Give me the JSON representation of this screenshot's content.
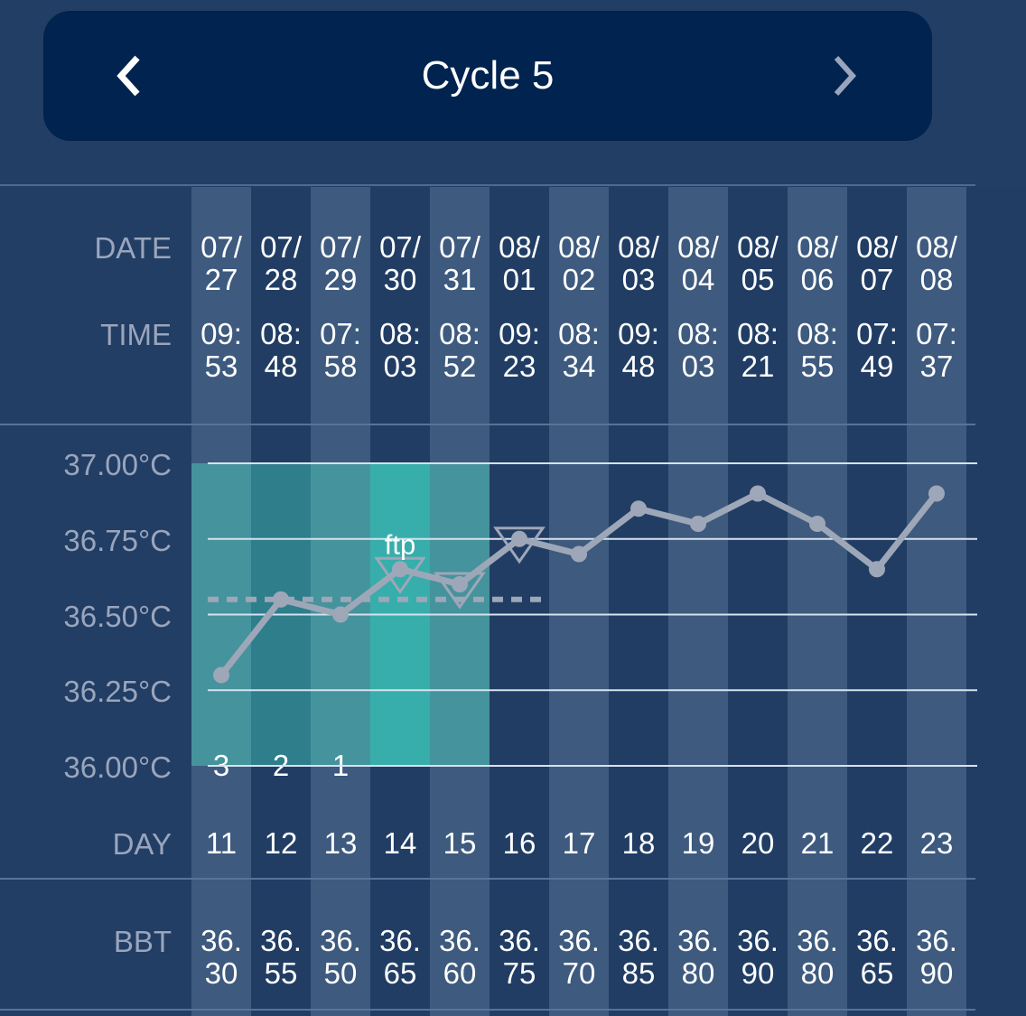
{
  "header": {
    "title": "Cycle 5",
    "prev_icon": "chevron-left-icon",
    "next_icon": "chevron-right-icon"
  },
  "labels": {
    "date": "DATE",
    "time": "TIME",
    "day": "DAY",
    "bbt": "BBT"
  },
  "chart_data": {
    "type": "line",
    "y_ticks": [
      "37.00°C",
      "36.75°C",
      "36.50°C",
      "36.25°C",
      "36.00°C"
    ],
    "ylim": [
      36.0,
      37.0
    ],
    "grid": true,
    "columns": [
      {
        "date": [
          "07/",
          "27"
        ],
        "time": [
          "09:",
          "53"
        ],
        "day": "11",
        "bbt": [
          "36.",
          "30"
        ],
        "value": 36.3,
        "fertile": "#45939c",
        "countdown": "3"
      },
      {
        "date": [
          "07/",
          "28"
        ],
        "time": [
          "08:",
          "48"
        ],
        "day": "12",
        "bbt": [
          "36.",
          "55"
        ],
        "value": 36.55,
        "fertile": "#2e7e8c",
        "countdown": "2"
      },
      {
        "date": [
          "07/",
          "29"
        ],
        "time": [
          "07:",
          "58"
        ],
        "day": "13",
        "bbt": [
          "36.",
          "50"
        ],
        "value": 36.5,
        "fertile": "#45939c",
        "countdown": "1"
      },
      {
        "date": [
          "07/",
          "30"
        ],
        "time": [
          "08:",
          "03"
        ],
        "day": "14",
        "bbt": [
          "36.",
          "65"
        ],
        "value": 36.65,
        "fertile": "#37aeab",
        "marker": true,
        "annotation": "ftp"
      },
      {
        "date": [
          "07/",
          "31"
        ],
        "time": [
          "08:",
          "52"
        ],
        "day": "15",
        "bbt": [
          "36.",
          "60"
        ],
        "value": 36.6,
        "fertile": "#45939c",
        "marker": true
      },
      {
        "date": [
          "08/",
          "01"
        ],
        "time": [
          "09:",
          "23"
        ],
        "day": "16",
        "bbt": [
          "36.",
          "75"
        ],
        "value": 36.75,
        "marker": true
      },
      {
        "date": [
          "08/",
          "02"
        ],
        "time": [
          "08:",
          "34"
        ],
        "day": "17",
        "bbt": [
          "36.",
          "70"
        ],
        "value": 36.7
      },
      {
        "date": [
          "08/",
          "03"
        ],
        "time": [
          "09:",
          "48"
        ],
        "day": "18",
        "bbt": [
          "36.",
          "85"
        ],
        "value": 36.85
      },
      {
        "date": [
          "08/",
          "04"
        ],
        "time": [
          "08:",
          "03"
        ],
        "day": "19",
        "bbt": [
          "36.",
          "80"
        ],
        "value": 36.8
      },
      {
        "date": [
          "08/",
          "05"
        ],
        "time": [
          "08:",
          "21"
        ],
        "day": "20",
        "bbt": [
          "36.",
          "90"
        ],
        "value": 36.9
      },
      {
        "date": [
          "08/",
          "06"
        ],
        "time": [
          "08:",
          "55"
        ],
        "day": "21",
        "bbt": [
          "36.",
          "80"
        ],
        "value": 36.8
      },
      {
        "date": [
          "08/",
          "07"
        ],
        "time": [
          "07:",
          "49"
        ],
        "day": "22",
        "bbt": [
          "36.",
          "65"
        ],
        "value": 36.65
      },
      {
        "date": [
          "08/",
          "08"
        ],
        "time": [
          "07:",
          "37"
        ],
        "day": "23",
        "bbt": [
          "36.",
          "90"
        ],
        "value": 36.9
      }
    ],
    "coverline": 36.55,
    "colors": {
      "line": "#9ea7b8",
      "col_light": "#3e5a7e",
      "col_dark": "#213d64",
      "grid": "#d6e2ee"
    }
  }
}
